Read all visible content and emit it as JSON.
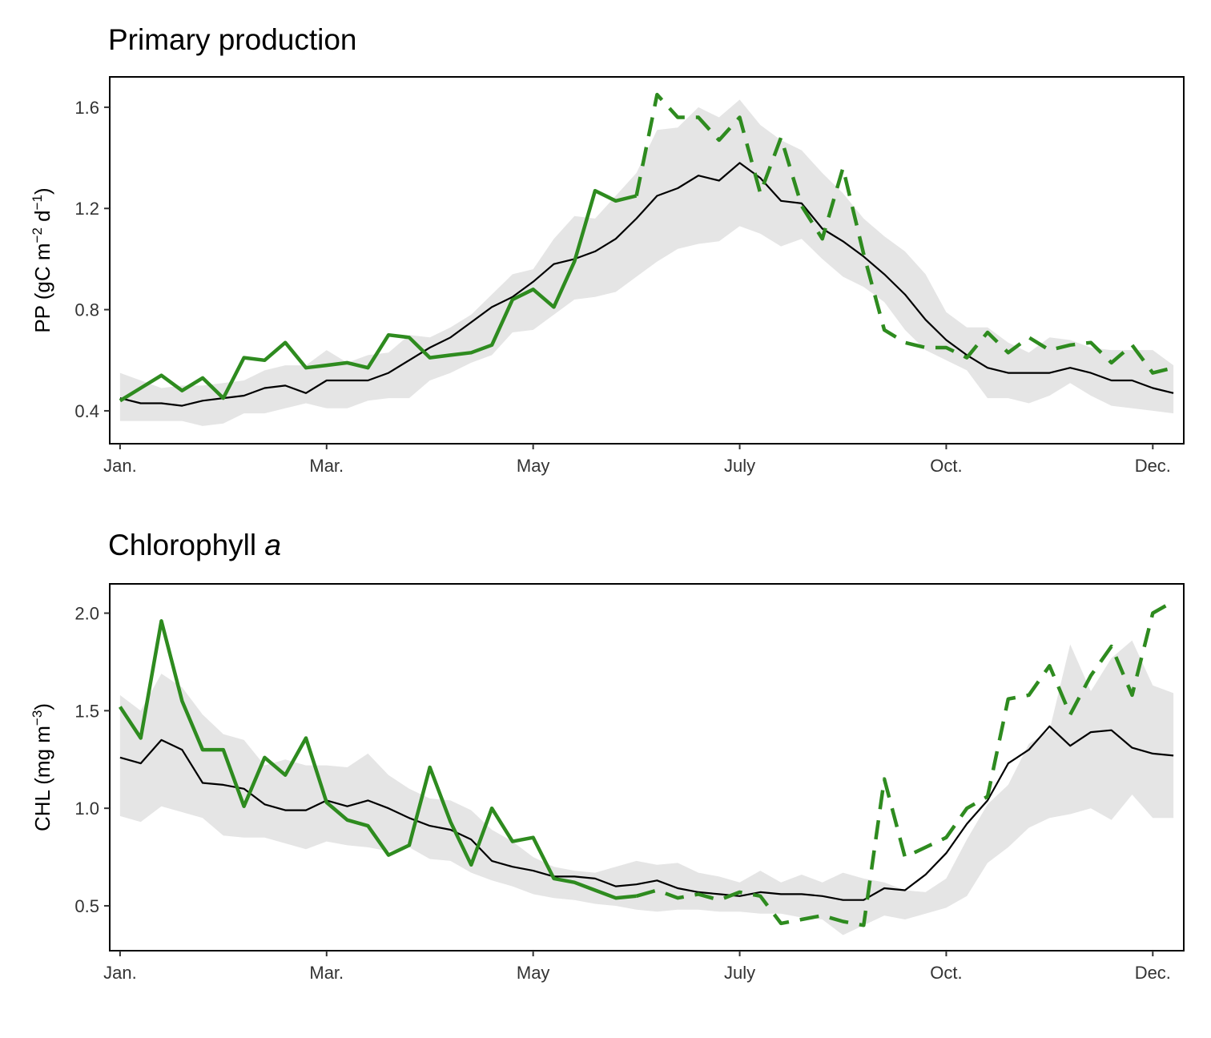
{
  "chart_data": [
    {
      "type": "line",
      "title": "Primary production",
      "title_italic": "",
      "ylabel_main": "PP (gC m",
      "ylabel_exp1": "−2",
      "ylabel_mid": " d",
      "ylabel_exp2": "−1",
      "ylabel_end": ")",
      "xlabel": "",
      "x_ticks": [
        "Jan.",
        "Mar.",
        "May",
        "July",
        "Oct.",
        "Dec."
      ],
      "x_tick_weeks": [
        0,
        10,
        20,
        30,
        40,
        50
      ],
      "xlim": [
        -0.5,
        51.5
      ],
      "ylim": [
        0.27,
        1.72
      ],
      "y_ticks": [
        0.4,
        0.8,
        1.2,
        1.6
      ],
      "y_tick_labels": [
        "0.4",
        "0.8",
        "1.2",
        "1.6"
      ],
      "grid": false,
      "colors": {
        "observed": "#2e8b1f",
        "mean": "#000000",
        "band": "#e5e5e5"
      },
      "band": {
        "lower": [
          0.36,
          0.36,
          0.36,
          0.36,
          0.34,
          0.35,
          0.39,
          0.39,
          0.41,
          0.43,
          0.41,
          0.41,
          0.44,
          0.45,
          0.45,
          0.52,
          0.55,
          0.59,
          0.62,
          0.71,
          0.72,
          0.78,
          0.84,
          0.85,
          0.87,
          0.93,
          0.99,
          1.04,
          1.06,
          1.07,
          1.13,
          1.1,
          1.05,
          1.08,
          1.0,
          0.93,
          0.89,
          0.83,
          0.72,
          0.64,
          0.6,
          0.56,
          0.45,
          0.45,
          0.43,
          0.46,
          0.51,
          0.46,
          0.42,
          0.41,
          0.4,
          0.39
        ],
        "upper": [
          0.55,
          0.52,
          0.49,
          0.5,
          0.5,
          0.51,
          0.52,
          0.56,
          0.58,
          0.58,
          0.64,
          0.59,
          0.62,
          0.63,
          0.7,
          0.69,
          0.73,
          0.78,
          0.86,
          0.94,
          0.96,
          1.08,
          1.17,
          1.16,
          1.25,
          1.34,
          1.51,
          1.52,
          1.6,
          1.56,
          1.63,
          1.53,
          1.47,
          1.43,
          1.34,
          1.26,
          1.16,
          1.09,
          1.03,
          0.94,
          0.79,
          0.73,
          0.73,
          0.67,
          0.63,
          0.69,
          0.68,
          0.65,
          0.64,
          0.64,
          0.64,
          0.58
        ]
      },
      "series": [
        {
          "role": "mean",
          "values": [
            0.45,
            0.43,
            0.43,
            0.42,
            0.44,
            0.45,
            0.46,
            0.49,
            0.5,
            0.47,
            0.52,
            0.52,
            0.52,
            0.55,
            0.6,
            0.65,
            0.69,
            0.75,
            0.81,
            0.85,
            0.91,
            0.98,
            1.0,
            1.03,
            1.08,
            1.16,
            1.25,
            1.28,
            1.33,
            1.31,
            1.38,
            1.32,
            1.23,
            1.22,
            1.12,
            1.07,
            1.01,
            0.94,
            0.86,
            0.76,
            0.68,
            0.62,
            0.57,
            0.55,
            0.55,
            0.55,
            0.57,
            0.55,
            0.52,
            0.52,
            0.49,
            0.47
          ]
        },
        {
          "role": "observed-solid",
          "values": [
            0.44,
            0.49,
            0.54,
            0.48,
            0.53,
            0.45,
            0.61,
            0.6,
            0.67,
            0.57,
            0.58,
            0.59,
            0.57,
            0.7,
            0.69,
            0.61,
            0.62,
            0.63,
            0.66,
            0.84,
            0.88,
            0.81,
            0.99,
            1.27,
            1.23,
            1.25,
            null,
            null,
            null,
            null,
            null,
            null,
            null,
            null,
            null,
            null,
            null,
            null,
            null,
            null,
            null,
            null,
            null,
            null,
            null,
            null,
            null,
            null,
            null,
            null,
            null,
            null
          ]
        },
        {
          "role": "observed-dashed",
          "values": [
            null,
            null,
            null,
            null,
            null,
            null,
            null,
            null,
            null,
            null,
            null,
            null,
            null,
            null,
            null,
            null,
            null,
            null,
            null,
            null,
            null,
            null,
            null,
            null,
            null,
            1.25,
            1.65,
            1.56,
            1.56,
            1.47,
            1.56,
            1.26,
            1.48,
            1.21,
            1.08,
            1.36,
            1.02,
            0.72,
            0.67,
            0.65,
            0.65,
            0.61,
            0.71,
            0.63,
            0.69,
            0.64,
            0.66,
            0.67,
            0.59,
            0.66,
            0.55,
            0.57
          ]
        }
      ]
    },
    {
      "type": "line",
      "title": "Chlorophyll ",
      "title_italic": "a",
      "ylabel_main": "CHL (mg m",
      "ylabel_exp1": "−3",
      "ylabel_mid": "",
      "ylabel_exp2": "",
      "ylabel_end": ")",
      "xlabel": "",
      "x_ticks": [
        "Jan.",
        "Mar.",
        "May",
        "July",
        "Oct.",
        "Dec."
      ],
      "x_tick_weeks": [
        0,
        10,
        20,
        30,
        40,
        50
      ],
      "xlim": [
        -0.5,
        51.5
      ],
      "ylim": [
        0.27,
        2.15
      ],
      "y_ticks": [
        0.5,
        1.0,
        1.5,
        2.0
      ],
      "y_tick_labels": [
        "0.5",
        "1.0",
        "1.5",
        "2.0"
      ],
      "grid": false,
      "colors": {
        "observed": "#2e8b1f",
        "mean": "#000000",
        "band": "#e5e5e5"
      },
      "band": {
        "lower": [
          0.96,
          0.93,
          1.01,
          0.98,
          0.95,
          0.86,
          0.85,
          0.85,
          0.82,
          0.79,
          0.83,
          0.81,
          0.8,
          0.78,
          0.8,
          0.74,
          0.73,
          0.67,
          0.63,
          0.6,
          0.56,
          0.54,
          0.53,
          0.51,
          0.5,
          0.48,
          0.47,
          0.48,
          0.48,
          0.47,
          0.47,
          0.46,
          0.46,
          0.44,
          0.43,
          0.35,
          0.4,
          0.45,
          0.43,
          0.46,
          0.49,
          0.55,
          0.72,
          0.8,
          0.9,
          0.95,
          0.97,
          1.0,
          0.94,
          1.07,
          0.95,
          0.95
        ],
        "upper": [
          1.58,
          1.5,
          1.69,
          1.62,
          1.48,
          1.38,
          1.35,
          1.22,
          1.25,
          1.22,
          1.22,
          1.21,
          1.28,
          1.17,
          1.1,
          1.05,
          1.04,
          0.99,
          0.89,
          0.83,
          0.75,
          0.7,
          0.68,
          0.67,
          0.7,
          0.73,
          0.71,
          0.72,
          0.67,
          0.65,
          0.62,
          0.68,
          0.62,
          0.66,
          0.62,
          0.67,
          0.64,
          0.62,
          0.58,
          0.57,
          0.64,
          0.84,
          1.02,
          1.12,
          1.33,
          1.4,
          1.84,
          1.6,
          1.77,
          1.86,
          1.63,
          1.59
        ]
      },
      "series": [
        {
          "role": "mean",
          "values": [
            1.26,
            1.23,
            1.35,
            1.3,
            1.13,
            1.12,
            1.1,
            1.02,
            0.99,
            0.99,
            1.04,
            1.01,
            1.04,
            1.0,
            0.95,
            0.91,
            0.89,
            0.84,
            0.73,
            0.7,
            0.68,
            0.65,
            0.65,
            0.64,
            0.6,
            0.61,
            0.63,
            0.59,
            0.57,
            0.56,
            0.55,
            0.57,
            0.56,
            0.56,
            0.55,
            0.53,
            0.53,
            0.59,
            0.58,
            0.66,
            0.77,
            0.92,
            1.04,
            1.23,
            1.3,
            1.42,
            1.32,
            1.39,
            1.4,
            1.31,
            1.28,
            1.27
          ]
        },
        {
          "role": "observed-solid",
          "values": [
            1.52,
            1.36,
            1.96,
            1.55,
            1.3,
            1.3,
            1.01,
            1.26,
            1.17,
            1.36,
            1.03,
            0.94,
            0.91,
            0.76,
            0.81,
            1.21,
            0.93,
            0.71,
            1.0,
            0.83,
            0.85,
            0.64,
            0.62,
            0.58,
            0.54,
            0.55,
            null,
            null,
            null,
            null,
            null,
            null,
            null,
            null,
            null,
            null,
            null,
            null,
            null,
            null,
            null,
            null,
            null,
            null,
            null,
            null,
            null,
            null,
            null,
            null,
            null,
            null
          ]
        },
        {
          "role": "observed-dashed",
          "values": [
            null,
            null,
            null,
            null,
            null,
            null,
            null,
            null,
            null,
            null,
            null,
            null,
            null,
            null,
            null,
            null,
            null,
            null,
            null,
            null,
            null,
            null,
            null,
            null,
            null,
            0.55,
            0.58,
            0.54,
            0.56,
            0.53,
            0.57,
            0.55,
            0.41,
            0.43,
            0.45,
            0.42,
            0.4,
            1.15,
            0.75,
            0.8,
            0.85,
            1.0,
            1.06,
            1.56,
            1.58,
            1.73,
            1.48,
            1.68,
            1.83,
            1.58,
            2.0,
            2.06
          ]
        }
      ]
    }
  ]
}
